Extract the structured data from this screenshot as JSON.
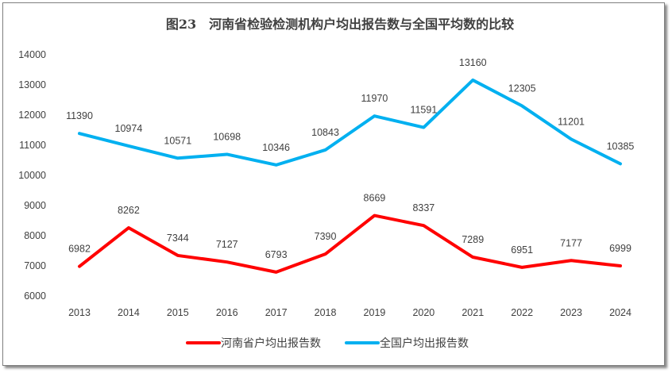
{
  "chart_data": {
    "type": "line",
    "title": "图23　河南省检验检测机构户均出报告数与全国平均数的比较",
    "categories": [
      "2013",
      "2014",
      "2015",
      "2016",
      "2017",
      "2018",
      "2019",
      "2020",
      "2021",
      "2022",
      "2023",
      "2024"
    ],
    "series": [
      {
        "name": "河南省户均出报告数",
        "color": "#ff0000",
        "values": [
          6982,
          8262,
          7344,
          7127,
          6793,
          7390,
          8669,
          8337,
          7289,
          6951,
          7177,
          6999
        ]
      },
      {
        "name": "全国户均出报告数",
        "color": "#00b0f0",
        "values": [
          11390,
          10974,
          10571,
          10698,
          10346,
          10843,
          11970,
          11591,
          13160,
          12305,
          11201,
          10385
        ]
      }
    ],
    "ylim": [
      6000,
      14000
    ],
    "yticks": [
      6000,
      7000,
      8000,
      9000,
      10000,
      11000,
      12000,
      13000,
      14000
    ],
    "grid": false,
    "legend": "bottom",
    "xlabel": "",
    "ylabel": ""
  }
}
